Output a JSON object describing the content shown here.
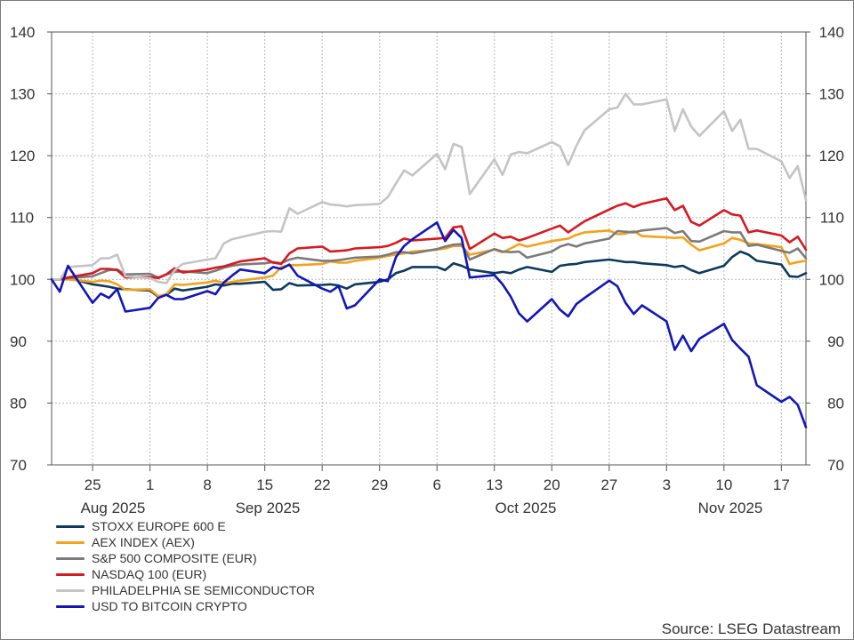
{
  "chart_data": {
    "type": "line",
    "title": "",
    "source": "Source: LSEG Datastream",
    "ylim": [
      70,
      140
    ],
    "y_ticks": [
      "70",
      "80",
      "90",
      "100",
      "110",
      "120",
      "130",
      "140"
    ],
    "x_day_ticks": [
      "25",
      "1",
      "8",
      "15",
      "22",
      "29",
      "6",
      "13",
      "20",
      "27",
      "3",
      "10",
      "17"
    ],
    "x_month_labels": [
      "Aug 2025",
      "Sep 2025",
      "Oct 2025",
      "Nov 2025"
    ],
    "grid": true,
    "legend_position": "bottom-left",
    "x": [
      "2025-08-20",
      "2025-08-21",
      "2025-08-22",
      "2025-08-25",
      "2025-08-26",
      "2025-08-27",
      "2025-08-28",
      "2025-08-29",
      "2025-09-01",
      "2025-09-02",
      "2025-09-03",
      "2025-09-04",
      "2025-09-05",
      "2025-09-08",
      "2025-09-09",
      "2025-09-10",
      "2025-09-11",
      "2025-09-12",
      "2025-09-15",
      "2025-09-16",
      "2025-09-17",
      "2025-09-18",
      "2025-09-19",
      "2025-09-22",
      "2025-09-23",
      "2025-09-24",
      "2025-09-25",
      "2025-09-26",
      "2025-09-29",
      "2025-09-30",
      "2025-10-01",
      "2025-10-02",
      "2025-10-03",
      "2025-10-06",
      "2025-10-07",
      "2025-10-08",
      "2025-10-09",
      "2025-10-10",
      "2025-10-13",
      "2025-10-14",
      "2025-10-15",
      "2025-10-16",
      "2025-10-17",
      "2025-10-20",
      "2025-10-21",
      "2025-10-22",
      "2025-10-23",
      "2025-10-24",
      "2025-10-27",
      "2025-10-28",
      "2025-10-29",
      "2025-10-30",
      "2025-10-31",
      "2025-11-03",
      "2025-11-04",
      "2025-11-05",
      "2025-11-06",
      "2025-11-07",
      "2025-11-10",
      "2025-11-11",
      "2025-11-12",
      "2025-11-13",
      "2025-11-14",
      "2025-11-17",
      "2025-11-18",
      "2025-11-19",
      "2025-11-20"
    ],
    "series": [
      {
        "name": "STOXX EUROPE 600 E",
        "color": "#0d3a5c",
        "values": [
          100,
          100,
          100.2,
          99.2,
          99,
          98.8,
          98.5,
          98.4,
          98.2,
          97.2,
          97.5,
          98.5,
          98.2,
          98.8,
          99.2,
          99,
          99.3,
          99.3,
          99.6,
          98.3,
          98.4,
          99.4,
          99,
          99.1,
          99.2,
          99,
          98.5,
          99.2,
          99.6,
          100,
          101,
          101.4,
          102,
          102,
          101.5,
          102.6,
          102.2,
          101.6,
          101,
          101.2,
          101,
          101.6,
          102,
          101.2,
          102.2,
          102.4,
          102.5,
          102.8,
          103.2,
          103,
          102.8,
          102.8,
          102.6,
          102.3,
          102,
          102.2,
          101.5,
          101,
          102.2,
          103.6,
          104.5,
          104,
          103,
          102.4,
          100.5,
          100.4,
          101
        ]
      },
      {
        "name": "AEX INDEX (AEX)",
        "color": "#f4a11b",
        "values": [
          100,
          100,
          100,
          99.6,
          99.8,
          99.7,
          99.2,
          98.3,
          98.4,
          97.3,
          97.6,
          99.2,
          99.1,
          99.5,
          99.8,
          99.4,
          99.6,
          99.8,
          100.3,
          100.6,
          102,
          102.3,
          102.3,
          102.5,
          102.9,
          102.7,
          102.7,
          103,
          103.5,
          103.8,
          104,
          104.2,
          104.5,
          104.8,
          105,
          105.4,
          105.4,
          104,
          104.8,
          104.4,
          105,
          105.7,
          105.3,
          106.2,
          106.4,
          106.6,
          107.2,
          107.6,
          107.9,
          107.3,
          107.4,
          107.8,
          107,
          106.8,
          106.7,
          106.8,
          105.6,
          104.7,
          105.8,
          106.7,
          106.4,
          105.8,
          105.7,
          105.2,
          102.5,
          102.8,
          103
        ]
      },
      {
        "name": "S&P 500 COMPOSITE (EUR)",
        "color": "#7b7b7b",
        "values": [
          100,
          100,
          100.2,
          100.5,
          101,
          101.5,
          101.6,
          100.8,
          100.9,
          100.3,
          100.8,
          101.2,
          101.3,
          101,
          101.4,
          101.9,
          102.2,
          102.4,
          102.6,
          102.8,
          102.6,
          103.2,
          103.5,
          103,
          103,
          103.1,
          103.3,
          103.5,
          103.7,
          104,
          104.4,
          104.4,
          104.2,
          104.9,
          105.3,
          105.6,
          105.7,
          103.2,
          104.9,
          104.5,
          104.4,
          104.5,
          103.5,
          104.5,
          105.3,
          105.7,
          105.3,
          105.8,
          106.6,
          107.8,
          107.7,
          107.6,
          107.9,
          108.3,
          107.5,
          107.8,
          106.2,
          106.1,
          107.8,
          107.6,
          107.6,
          105.4,
          105.6,
          104.6,
          104.3,
          105,
          103.4
        ]
      },
      {
        "name": "NASDAQ 100 (EUR)",
        "color": "#d71920",
        "values": [
          100,
          100,
          100.3,
          101,
          101.7,
          101.7,
          101.5,
          100.3,
          100.4,
          100.2,
          100.8,
          101.8,
          101.1,
          101.6,
          101.9,
          102.1,
          102.5,
          102.9,
          103.4,
          102.7,
          102.5,
          104.2,
          105,
          105.3,
          104.5,
          104.6,
          104.7,
          105,
          105.2,
          105.4,
          105.9,
          106.6,
          106.3,
          106.6,
          106.7,
          108.4,
          108.6,
          104.9,
          107.4,
          106.7,
          106.9,
          106.3,
          106.7,
          108.2,
          108.7,
          107.6,
          108.5,
          109.4,
          111.3,
          111.9,
          112.3,
          111.7,
          112.2,
          113.1,
          111.2,
          111.9,
          109.3,
          108.7,
          111.2,
          110.5,
          110.3,
          107.6,
          107.9,
          107.1,
          106,
          106.9,
          104.8
        ]
      },
      {
        "name": "PHILADELPHIA SE SEMICONDUCTOR",
        "color": "#c4c4c4",
        "values": [
          100,
          100,
          102,
          102.3,
          103.4,
          103.4,
          104,
          100.5,
          100.2,
          99.6,
          99.4,
          101.5,
          102.5,
          103.2,
          103.4,
          105.8,
          106.5,
          106.8,
          107.7,
          107.8,
          107.7,
          111.5,
          110.6,
          112.5,
          112.1,
          112,
          111.8,
          112,
          112.2,
          113.3,
          115.5,
          117.6,
          116.8,
          120.3,
          117.8,
          121.9,
          121.4,
          113.8,
          119.4,
          116.9,
          120.2,
          120.6,
          120.4,
          122.2,
          121.5,
          118.5,
          121.6,
          124.1,
          127.5,
          127.8,
          130,
          128.3,
          128.3,
          129.1,
          124,
          127.5,
          124.7,
          123.2,
          127.2,
          124,
          125.8,
          121.1,
          121.1,
          119.1,
          116.4,
          118.3,
          112.8
        ]
      },
      {
        "name": "USD TO BITCOIN CRYPTO",
        "color": "#1116b9",
        "values": [
          100,
          98,
          102.2,
          96.2,
          97.7,
          97,
          98.4,
          94.8,
          95.4,
          97,
          97.5,
          96.8,
          96.8,
          98.1,
          97.6,
          99.5,
          100.6,
          101.6,
          101,
          102,
          101.7,
          102.4,
          100.6,
          98.5,
          98,
          98.9,
          95.3,
          95.8,
          100,
          99.7,
          103.6,
          105.4,
          106.5,
          109.2,
          106.2,
          108,
          106.7,
          100.3,
          100.7,
          99.2,
          97.2,
          94.5,
          93.2,
          96.8,
          95.1,
          94,
          96,
          97,
          99.8,
          98.9,
          96.2,
          94.4,
          95.8,
          93.2,
          88.6,
          90.9,
          88.4,
          90.4,
          92.8,
          90.2,
          88.8,
          87.5,
          82.9,
          80.2,
          81,
          79.7,
          76.1
        ]
      }
    ]
  }
}
